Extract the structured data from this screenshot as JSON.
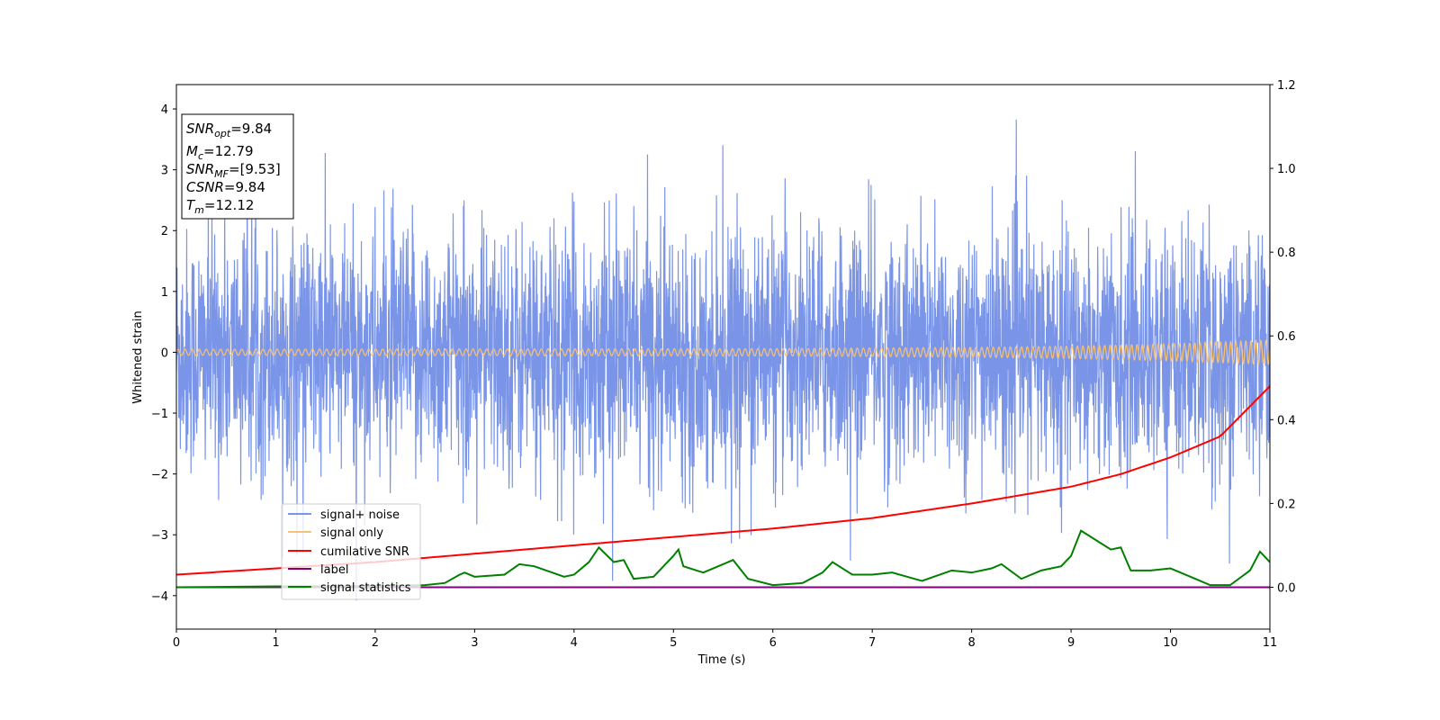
{
  "chart_data": {
    "type": "line",
    "xlabel": "Time (s)",
    "ylabel": "Whitened strain",
    "xlim": [
      0,
      11
    ],
    "ylim_left": [
      -4.55,
      4.4
    ],
    "ylim_right": [
      -0.1,
      1.2
    ],
    "x_ticks": [
      0,
      1,
      2,
      3,
      4,
      5,
      6,
      7,
      8,
      9,
      10,
      11
    ],
    "y_ticks_left": [
      -4,
      -3,
      -2,
      -1,
      0,
      1,
      2,
      3,
      4
    ],
    "y_ticks_right": [
      "0.0",
      "0.2",
      "0.4",
      "0.6",
      "0.8",
      "1.0",
      "1.2"
    ],
    "legend_position": "lower-left",
    "info_box": {
      "snr_opt": {
        "base": "SNR",
        "sub": "opt",
        "value": "=9.84"
      },
      "mc": {
        "base": "M",
        "sub": "c",
        "value": "=12.79"
      },
      "snr_mf": {
        "base": "SNR",
        "sub": "MF",
        "value": "=[9.53]"
      },
      "csnr": {
        "base": "CSNR",
        "value": "=9.84"
      },
      "tm": {
        "base": "T",
        "sub": "m",
        "value": "=12.12"
      }
    },
    "series": [
      {
        "name": "signal+ noise",
        "color": "#7a95e8",
        "axis": "left",
        "description_noise_sd": 1.0
      },
      {
        "name": "signal only",
        "color": "#f5c27a",
        "axis": "left",
        "amplitude_envelope": {
          "x": [
            0,
            6,
            8,
            9,
            10,
            11
          ],
          "y": [
            0.05,
            0.06,
            0.08,
            0.1,
            0.14,
            0.2
          ]
        }
      },
      {
        "name": "cumilative SNR",
        "color": "#ff0000",
        "axis": "right",
        "x": [
          0,
          1,
          2,
          3,
          4,
          5,
          6,
          7,
          8,
          9,
          9.5,
          10,
          10.5,
          11
        ],
        "y": [
          0.03,
          0.045,
          0.06,
          0.08,
          0.1,
          0.12,
          0.14,
          0.165,
          0.2,
          0.24,
          0.27,
          0.31,
          0.36,
          0.48
        ]
      },
      {
        "name": "label",
        "color": "#800080",
        "axis": "right",
        "x": [
          0,
          11
        ],
        "y": [
          0.0,
          0.0
        ]
      },
      {
        "name": "signal statistics",
        "color": "#008000",
        "axis": "right",
        "x": [
          0,
          1,
          2,
          2.5,
          2.7,
          2.85,
          2.9,
          3.0,
          3.3,
          3.45,
          3.6,
          3.9,
          4.0,
          4.15,
          4.25,
          4.4,
          4.5,
          4.6,
          4.8,
          4.9,
          5.0,
          5.05,
          5.1,
          5.3,
          5.4,
          5.6,
          5.75,
          6.0,
          6.3,
          6.5,
          6.6,
          6.8,
          7.0,
          7.2,
          7.5,
          7.8,
          8.0,
          8.2,
          8.3,
          8.5,
          8.7,
          8.9,
          9.0,
          9.1,
          9.2,
          9.4,
          9.5,
          9.6,
          9.8,
          10.0,
          10.2,
          10.4,
          10.6,
          10.8,
          10.9,
          11.0
        ],
        "y": [
          0.0,
          0.002,
          0.003,
          0.005,
          0.01,
          0.03,
          0.035,
          0.025,
          0.03,
          0.055,
          0.05,
          0.025,
          0.03,
          0.06,
          0.095,
          0.06,
          0.065,
          0.02,
          0.025,
          0.05,
          0.075,
          0.09,
          0.05,
          0.035,
          0.045,
          0.065,
          0.02,
          0.005,
          0.01,
          0.035,
          0.06,
          0.03,
          0.03,
          0.035,
          0.015,
          0.04,
          0.035,
          0.045,
          0.055,
          0.02,
          0.04,
          0.05,
          0.075,
          0.135,
          0.12,
          0.09,
          0.095,
          0.04,
          0.04,
          0.045,
          0.025,
          0.005,
          0.005,
          0.04,
          0.085,
          0.06
        ]
      }
    ]
  }
}
